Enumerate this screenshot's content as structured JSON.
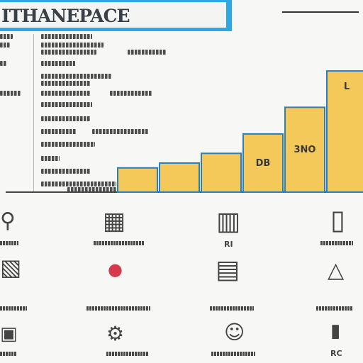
{
  "header": {
    "title": "ITHANEPACE"
  },
  "chart_data": {
    "type": "bar",
    "categories": [
      "",
      "",
      "",
      "",
      "",
      ""
    ],
    "values": [
      1,
      1.2,
      1.6,
      2.4,
      3.5,
      5
    ],
    "labels": [
      "",
      "",
      "",
      "DB",
      "3NO",
      "L"
    ],
    "ylim": [
      0,
      5.5
    ],
    "title": "",
    "xlabel": "",
    "ylabel": "",
    "colors": {
      "bar_fill": "#f4c95a",
      "bar_stroke": "#2a7fbf",
      "axis": "#444444"
    }
  },
  "icons": [
    {
      "name": "person-icon",
      "glyph": "⚲"
    },
    {
      "name": "calculator-icon",
      "glyph": "▦"
    },
    {
      "name": "building-icon",
      "glyph": "▥"
    },
    {
      "name": "phone-icon",
      "glyph": "▯"
    },
    {
      "name": "chart-icon",
      "glyph": "▧"
    },
    {
      "name": "money-icon",
      "glyph": "●"
    },
    {
      "name": "bank-icon",
      "glyph": "▤"
    },
    {
      "name": "tower-icon",
      "glyph": "△"
    },
    {
      "name": "document-icon",
      "glyph": "▣"
    },
    {
      "name": "gear-icon",
      "glyph": "⚙"
    },
    {
      "name": "user-icon",
      "glyph": "☺"
    },
    {
      "name": "bottle-icon",
      "glyph": "▮"
    }
  ],
  "icon_captions": [
    "",
    "",
    "",
    "",
    "RI",
    "",
    "",
    "",
    "",
    "",
    "",
    "RC"
  ]
}
